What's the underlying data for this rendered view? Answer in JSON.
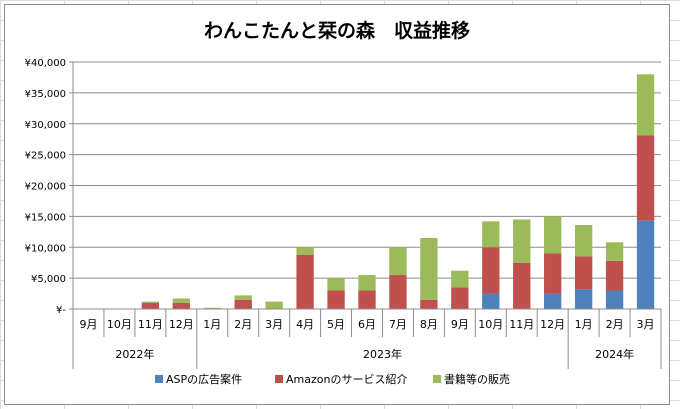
{
  "chart_data": {
    "type": "bar",
    "stacked": true,
    "title": "わんこたんと栞の森　収益推移",
    "xlabel": "",
    "ylabel": "",
    "ylim": [
      0,
      40000
    ],
    "yticks": [
      {
        "value": 0,
        "label": "¥-"
      },
      {
        "value": 5000,
        "label": "¥5,000"
      },
      {
        "value": 10000,
        "label": "¥10,000"
      },
      {
        "value": 15000,
        "label": "¥15,000"
      },
      {
        "value": 20000,
        "label": "¥20,000"
      },
      {
        "value": 25000,
        "label": "¥25,000"
      },
      {
        "value": 30000,
        "label": "¥30,000"
      },
      {
        "value": 35000,
        "label": "¥35,000"
      },
      {
        "value": 40000,
        "label": "¥40,000"
      }
    ],
    "categories": [
      "9月",
      "10月",
      "11月",
      "12月",
      "1月",
      "2月",
      "3月",
      "4月",
      "5月",
      "6月",
      "7月",
      "8月",
      "9月",
      "10月",
      "11月",
      "12月",
      "1月",
      "2月",
      "3月"
    ],
    "year_groups": [
      {
        "label": "2022年",
        "count": 4
      },
      {
        "label": "2023年",
        "count": 12
      },
      {
        "label": "2024年",
        "count": 3
      }
    ],
    "series": [
      {
        "name": "ASPの広告案件",
        "color": "#4f81bd",
        "values": [
          0,
          0,
          0,
          0,
          0,
          0,
          0,
          0,
          0,
          0,
          0,
          0,
          0,
          2500,
          0,
          2500,
          3200,
          3000,
          14300
        ]
      },
      {
        "name": "Amazonのサービス紹介",
        "color": "#c0504d",
        "values": [
          0,
          0,
          1000,
          1000,
          0,
          1500,
          0,
          8800,
          3000,
          3000,
          5500,
          1500,
          3500,
          7500,
          7500,
          6500,
          5300,
          4800,
          13800
        ]
      },
      {
        "name": "書籍等の販売",
        "color": "#9bbb59",
        "values": [
          0,
          0,
          200,
          700,
          200,
          700,
          1200,
          1200,
          2000,
          2500,
          4500,
          10000,
          2700,
          4200,
          7000,
          6000,
          5100,
          3000,
          9900
        ]
      }
    ],
    "legend_position": "bottom",
    "grid": true
  }
}
